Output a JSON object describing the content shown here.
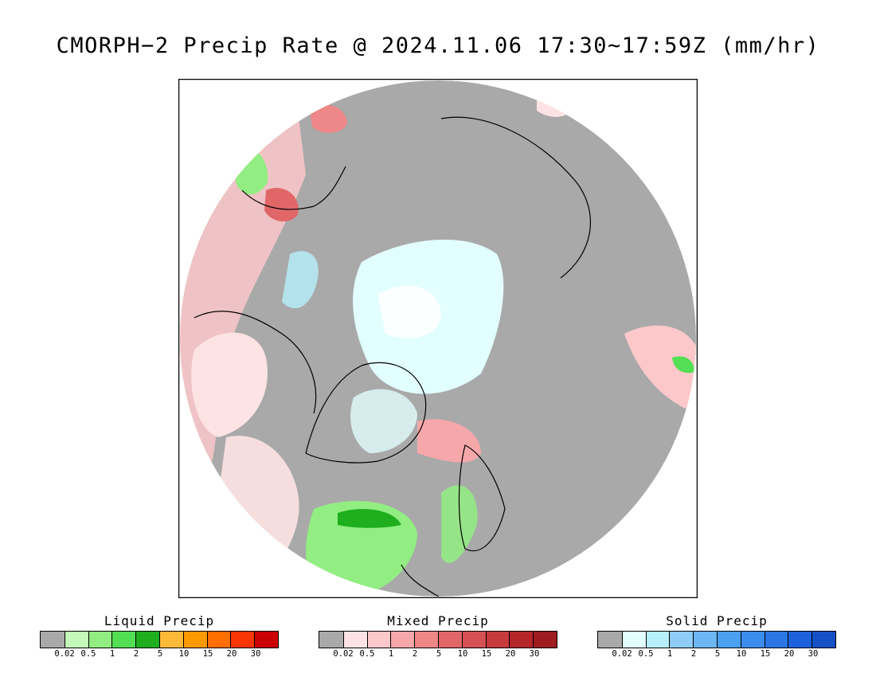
{
  "title": "CMORPH−2 Precip Rate @ 2024.11.06 17:30∼17:59Z (mm/hr)",
  "map": {
    "projection": "north-polar-stereographic",
    "colors": {
      "no_precip": "#a9a9a9",
      "frame": "#000000",
      "coastline": "#000000",
      "outside": "#ffffff"
    }
  },
  "legends": [
    {
      "id": "liquid",
      "title": "Liquid Precip",
      "colors": [
        "#a9a9a9",
        "#c3f9b9",
        "#92ee82",
        "#53df53",
        "#1eae1e",
        "#fdba38",
        "#fd9a00",
        "#fe6e00",
        "#f93502",
        "#ca0203"
      ],
      "ticks": [
        "0.02",
        "0.5",
        "1",
        "2",
        "5",
        "10",
        "15",
        "20",
        "30"
      ]
    },
    {
      "id": "mixed",
      "title": "Mixed Precip",
      "colors": [
        "#a9a9a9",
        "#fee3e4",
        "#fcc8ca",
        "#f5a7a9",
        "#ee8788",
        "#e16668",
        "#d55154",
        "#c73a3d",
        "#b52629",
        "#9e1b1f"
      ],
      "ticks": [
        "0.02",
        "0.5",
        "1",
        "2",
        "5",
        "10",
        "15",
        "20",
        "30"
      ]
    },
    {
      "id": "solid",
      "title": "Solid Precip",
      "colors": [
        "#a9a9a9",
        "#e2fefe",
        "#b6f0fc",
        "#8fcdf8",
        "#6db6f4",
        "#4ba0ef",
        "#3b8cec",
        "#2b77e6",
        "#1d62dc",
        "#1550c7"
      ],
      "ticks": [
        "0.02",
        "0.5",
        "1",
        "2",
        "5",
        "10",
        "15",
        "20",
        "30"
      ]
    }
  ]
}
